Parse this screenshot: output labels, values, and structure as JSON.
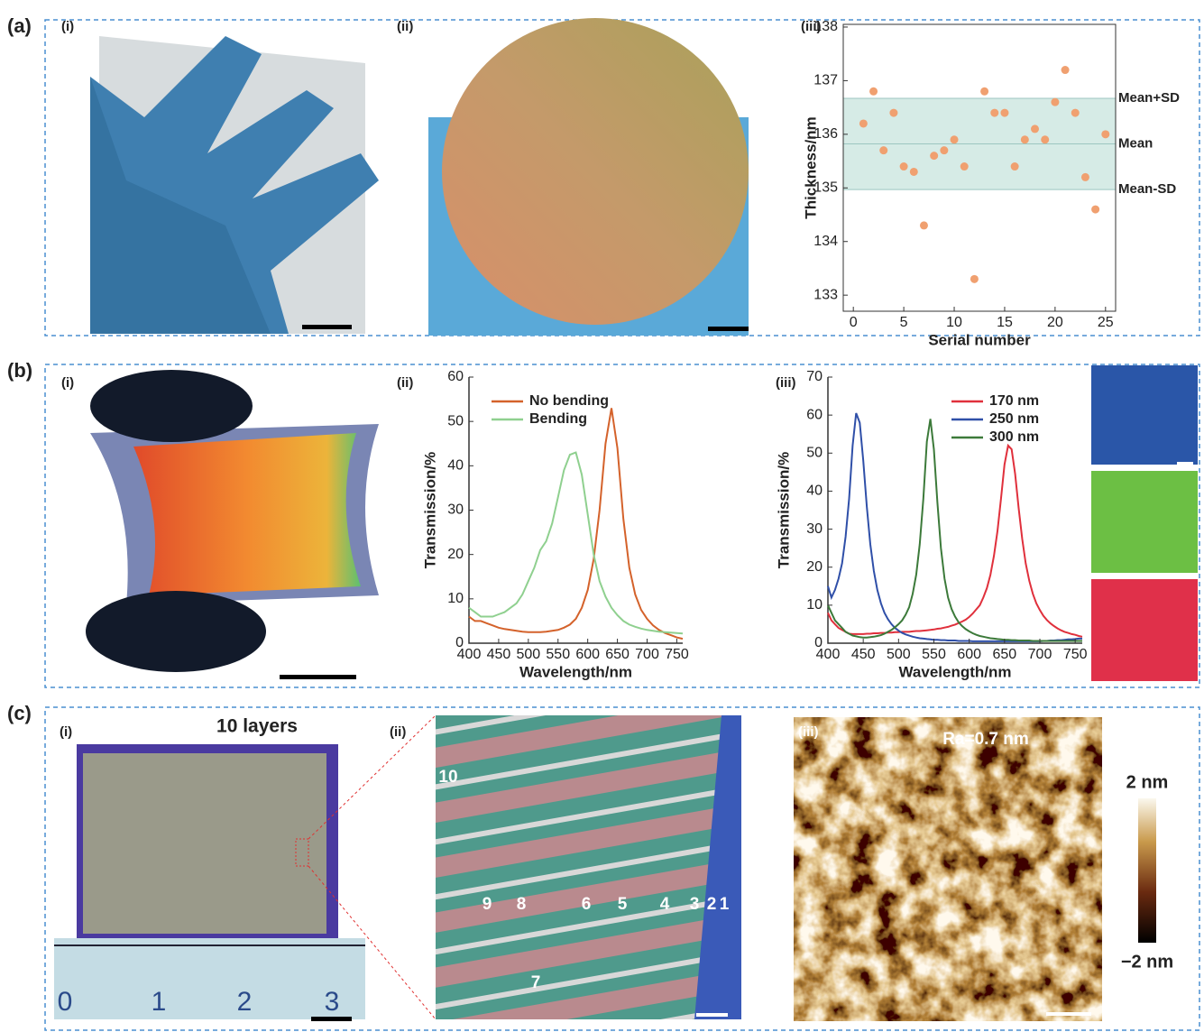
{
  "panels": [
    {
      "label": "(a)",
      "subpanels": [
        "(i)",
        "(ii)",
        "(iii)"
      ]
    },
    {
      "label": "(b)",
      "subpanels": [
        "(i)",
        "(ii)",
        "(iii)"
      ]
    },
    {
      "label": "(c)",
      "subpanels": [
        "(i)",
        "(ii)",
        "(iii)"
      ]
    }
  ],
  "images": {
    "c_i_caption": "10 layers",
    "ruler_numbers": [
      "0",
      "1",
      "2",
      "3"
    ],
    "layer_numbers": [
      "10",
      "9",
      "8",
      "6",
      "5",
      "4",
      "3",
      "2",
      "1",
      "7"
    ],
    "afm_roughness": "Ra=0.7 nm",
    "colorbar_labels": [
      "2 nm",
      "−2 nm"
    ]
  },
  "chart_data": [
    {
      "type": "scatter",
      "x_label": "Serial number",
      "y_label": "Thickness/nm",
      "x": [
        1,
        2,
        3,
        4,
        5,
        6,
        7,
        8,
        9,
        10,
        11,
        12,
        13,
        14,
        15,
        16,
        17,
        18,
        19,
        20,
        21,
        22,
        23,
        24,
        25
      ],
      "values": [
        136.2,
        136.8,
        135.7,
        136.4,
        135.4,
        135.3,
        134.3,
        135.6,
        135.7,
        135.9,
        135.4,
        133.3,
        136.8,
        136.4,
        136.4,
        135.4,
        135.9,
        136.1,
        135.9,
        136.6,
        137.2,
        136.4,
        135.2,
        134.6,
        136.0
      ],
      "color": "#f0a070",
      "reference_lines": [
        {
          "label": "Mean+SD",
          "value": 136.67
        },
        {
          "label": "Mean",
          "value": 135.82
        },
        {
          "label": "Mean-SD",
          "value": 134.97
        }
      ],
      "band_color": "#d6ebe6",
      "xlim": [
        -1,
        26
      ],
      "ylim": [
        132.7,
        138.05
      ],
      "xticks": [
        0,
        5,
        10,
        15,
        20,
        25
      ],
      "yticks": [
        133,
        134,
        135,
        136,
        137,
        138
      ]
    },
    {
      "type": "line",
      "x_label": "Wavelength/nm",
      "y_label": "Transmission/%",
      "legend": "upper left",
      "x": [
        400,
        410,
        420,
        430,
        440,
        450,
        460,
        470,
        480,
        490,
        500,
        510,
        520,
        530,
        540,
        550,
        560,
        570,
        580,
        590,
        600,
        610,
        620,
        630,
        640,
        650,
        660,
        670,
        680,
        690,
        700,
        710,
        720,
        730,
        740,
        750,
        760
      ],
      "series": [
        {
          "name": "No bending",
          "color": "#d4622b",
          "values": [
            6,
            5,
            5,
            4.5,
            4,
            3.5,
            3.2,
            3,
            2.8,
            2.6,
            2.5,
            2.5,
            2.5,
            2.6,
            2.8,
            3,
            3.5,
            4.2,
            5.5,
            8,
            12,
            19,
            30,
            45,
            53,
            44,
            28,
            17,
            11,
            7.5,
            5.5,
            4,
            3,
            2.3,
            1.8,
            1.3,
            1
          ]
        },
        {
          "name": "Bending",
          "color": "#8fd08f",
          "values": [
            8,
            7,
            6,
            6,
            6,
            6.5,
            7,
            8,
            9,
            11,
            14,
            17,
            21,
            23,
            27,
            33,
            39,
            42.5,
            43,
            38,
            29,
            20,
            14,
            10.5,
            8,
            6.3,
            5,
            4.2,
            3.7,
            3.3,
            3,
            2.8,
            2.6,
            2.5,
            2.4,
            2.3,
            2.2
          ]
        }
      ],
      "xlim": [
        400,
        760
      ],
      "ylim": [
        0,
        60
      ],
      "xticks": [
        400,
        450,
        500,
        550,
        600,
        650,
        700,
        750
      ],
      "yticks": [
        0,
        10,
        20,
        30,
        40,
        50,
        60
      ]
    },
    {
      "type": "line",
      "x_label": "Wavelength/nm",
      "y_label": "Transmission/%",
      "legend": "upper right",
      "x": [
        400,
        405,
        410,
        415,
        420,
        425,
        430,
        435,
        440,
        445,
        450,
        455,
        460,
        465,
        470,
        475,
        480,
        485,
        490,
        495,
        500,
        505,
        510,
        515,
        520,
        525,
        530,
        535,
        540,
        545,
        550,
        555,
        560,
        565,
        570,
        575,
        580,
        585,
        590,
        595,
        600,
        605,
        610,
        615,
        620,
        625,
        630,
        635,
        640,
        645,
        650,
        655,
        660,
        665,
        670,
        675,
        680,
        685,
        690,
        695,
        700,
        705,
        710,
        715,
        720,
        725,
        730,
        735,
        740,
        745,
        750,
        755,
        760
      ],
      "series": [
        {
          "name": "170 nm",
          "color": "#e0303c",
          "values": [
            8,
            6,
            5,
            4,
            3.5,
            3,
            2.5,
            2.4,
            2.4,
            2.4,
            2.4,
            2.5,
            2.5,
            2.6,
            2.6,
            2.7,
            2.7,
            2.8,
            2.8,
            2.9,
            2.9,
            3,
            3,
            3,
            3.1,
            3.2,
            3.2,
            3.3,
            3.4,
            3.5,
            3.6,
            3.8,
            3.9,
            4.1,
            4.3,
            4.6,
            4.9,
            5.3,
            5.7,
            6.2,
            6.9,
            7.8,
            8.9,
            10,
            12,
            14.5,
            18,
            23,
            29.5,
            38,
            47,
            52,
            51,
            44.5,
            35.5,
            27.5,
            21,
            16.4,
            13,
            10.5,
            8.7,
            7.2,
            6.1,
            5.2,
            4.5,
            3.9,
            3.4,
            3,
            2.7,
            2.4,
            2.2,
            1.9,
            1.7
          ]
        },
        {
          "name": "250 nm",
          "color": "#2f4fa8",
          "values": [
            15,
            12,
            14,
            17,
            21,
            28,
            38,
            52,
            60.5,
            58,
            48,
            36,
            26,
            19,
            14,
            10.5,
            8,
            6.3,
            5,
            4,
            3.3,
            2.7,
            2.3,
            2,
            1.7,
            1.5,
            1.3,
            1.2,
            1.1,
            1,
            0.9,
            0.9,
            0.8,
            0.8,
            0.7,
            0.7,
            0.7,
            0.6,
            0.6,
            0.6,
            0.6,
            0.5,
            0.5,
            0.5,
            0.5,
            0.5,
            0.5,
            0.5,
            0.5,
            0.5,
            0.5,
            0.5,
            0.5,
            0.5,
            0.5,
            0.5,
            0.5,
            0.5,
            0.5,
            0.5,
            0.5,
            0.6,
            0.6,
            0.7,
            0.7,
            0.8,
            0.8,
            0.9,
            1,
            1,
            1.1,
            1.2,
            1.2
          ]
        },
        {
          "name": "300 nm",
          "color": "#3c7a3a",
          "values": [
            10,
            8,
            6,
            5,
            4,
            3,
            2.5,
            2,
            1.8,
            1.6,
            1.5,
            1.5,
            1.6,
            1.7,
            1.9,
            2.1,
            2.5,
            3,
            3.5,
            4.2,
            5,
            6,
            7.5,
            9.5,
            13,
            18,
            26,
            38,
            53,
            59,
            51,
            37,
            25,
            17,
            12,
            9,
            7,
            5.5,
            4.5,
            3.7,
            3.1,
            2.6,
            2.2,
            1.9,
            1.7,
            1.5,
            1.3,
            1.2,
            1.1,
            1,
            0.9,
            0.9,
            0.8,
            0.8,
            0.7,
            0.7,
            0.7,
            0.7,
            0.6,
            0.6,
            0.6,
            0.6,
            0.6,
            0.6,
            0.6,
            0.6,
            0.6,
            0.6,
            0.6,
            0.6,
            0.6,
            0.6,
            0.6
          ]
        }
      ],
      "xlim": [
        400,
        760
      ],
      "ylim": [
        0,
        70
      ],
      "xticks": [
        400,
        450,
        500,
        550,
        600,
        650,
        700,
        750
      ],
      "yticks": [
        0,
        10,
        20,
        30,
        40,
        50,
        60,
        70
      ]
    }
  ]
}
